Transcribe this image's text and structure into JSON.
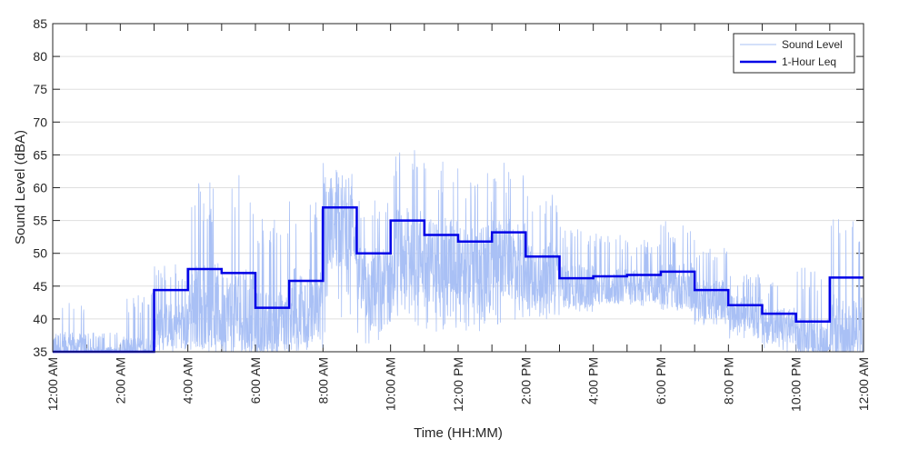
{
  "chart_data": {
    "type": "line",
    "xlabel": "Time (HH:MM)",
    "ylabel": "Sound Level (dBA)",
    "xlim": [
      0,
      24
    ],
    "ylim": [
      35,
      85
    ],
    "grid": "horizontal",
    "legend_position": "top-right",
    "x_ticks": [
      {
        "hour": 0,
        "label": "12:00 AM"
      },
      {
        "hour": 2,
        "label": "2:00 AM"
      },
      {
        "hour": 4,
        "label": "4:00 AM"
      },
      {
        "hour": 6,
        "label": "6:00 AM"
      },
      {
        "hour": 8,
        "label": "8:00 AM"
      },
      {
        "hour": 10,
        "label": "10:00 AM"
      },
      {
        "hour": 12,
        "label": "12:00 PM"
      },
      {
        "hour": 14,
        "label": "2:00 PM"
      },
      {
        "hour": 16,
        "label": "4:00 PM"
      },
      {
        "hour": 18,
        "label": "6:00 PM"
      },
      {
        "hour": 20,
        "label": "8:00 PM"
      },
      {
        "hour": 22,
        "label": "10:00 PM"
      },
      {
        "hour": 24,
        "label": "12:00 AM"
      }
    ],
    "y_ticks": [
      35,
      40,
      45,
      50,
      55,
      60,
      65,
      70,
      75,
      80,
      85
    ],
    "series": [
      {
        "name": "Sound Level",
        "color": "#a9c0f5",
        "style": "thin-line",
        "hourly_profile": [
          {
            "hour": 0,
            "low": 35,
            "typical": 36,
            "high": 43
          },
          {
            "hour": 1,
            "low": 35,
            "typical": 35,
            "high": 38
          },
          {
            "hour": 2,
            "low": 35,
            "typical": 35,
            "high": 44
          },
          {
            "hour": 3,
            "low": 35,
            "typical": 39,
            "high": 49
          },
          {
            "hour": 4,
            "low": 35,
            "typical": 42,
            "high": 61
          },
          {
            "hour": 5,
            "low": 35,
            "typical": 41,
            "high": 62
          },
          {
            "hour": 6,
            "low": 35,
            "typical": 39,
            "high": 56
          },
          {
            "hour": 7,
            "low": 35,
            "typical": 42,
            "high": 58
          },
          {
            "hour": 8,
            "low": 38,
            "typical": 54,
            "high": 64
          },
          {
            "hour": 9,
            "low": 36,
            "typical": 45,
            "high": 60
          },
          {
            "hour": 10,
            "low": 37,
            "typical": 50,
            "high": 66
          },
          {
            "hour": 11,
            "low": 38,
            "typical": 49,
            "high": 64
          },
          {
            "hour": 12,
            "low": 38,
            "typical": 48,
            "high": 63
          },
          {
            "hour": 13,
            "low": 39,
            "typical": 49,
            "high": 64
          },
          {
            "hour": 14,
            "low": 40,
            "typical": 47,
            "high": 59
          },
          {
            "hour": 15,
            "low": 41,
            "typical": 45,
            "high": 54
          },
          {
            "hour": 16,
            "low": 42,
            "typical": 45,
            "high": 53
          },
          {
            "hour": 17,
            "low": 42,
            "typical": 45,
            "high": 52
          },
          {
            "hour": 18,
            "low": 41,
            "typical": 45,
            "high": 55
          },
          {
            "hour": 19,
            "low": 39,
            "typical": 43,
            "high": 51
          },
          {
            "hour": 20,
            "low": 37,
            "typical": 41,
            "high": 47
          },
          {
            "hour": 21,
            "low": 35,
            "typical": 39,
            "high": 46
          },
          {
            "hour": 22,
            "low": 35,
            "typical": 37,
            "high": 48
          },
          {
            "hour": 23,
            "low": 35,
            "typical": 38,
            "high": 58
          }
        ]
      },
      {
        "name": "1-Hour Leq",
        "color": "#0000e6",
        "style": "step",
        "hours": [
          0,
          1,
          2,
          3,
          4,
          5,
          6,
          7,
          8,
          9,
          10,
          11,
          12,
          13,
          14,
          15,
          16,
          17,
          18,
          19,
          20,
          21,
          22,
          23
        ],
        "values": [
          35.0,
          35.0,
          35.0,
          44.4,
          47.6,
          47.0,
          41.7,
          45.8,
          57.0,
          50.0,
          55.0,
          52.8,
          51.8,
          53.2,
          49.5,
          46.2,
          46.5,
          46.7,
          47.2,
          44.4,
          42.1,
          40.8,
          39.6,
          46.3
        ]
      }
    ]
  }
}
